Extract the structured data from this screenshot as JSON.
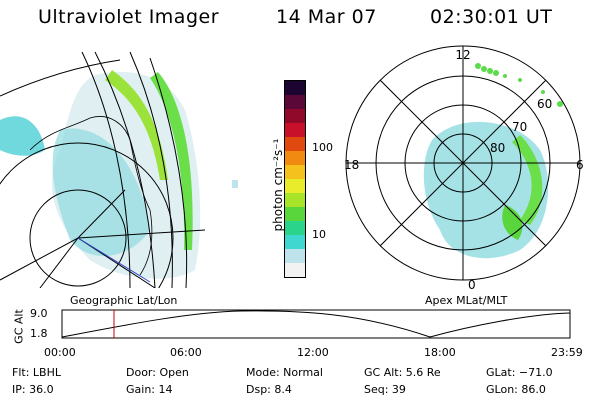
{
  "header": {
    "title": "Ultraviolet Imager",
    "date": "14 Mar 07",
    "time": "02:30:01 UT"
  },
  "colorbar": {
    "unit_label": "photon cm⁻²s⁻¹",
    "ticks": [
      "100",
      "10"
    ],
    "colors": [
      "#f2f2f2",
      "#bfe3ea",
      "#3fd7d0",
      "#2ad48a",
      "#58d63c",
      "#a8e42a",
      "#e8ec2a",
      "#f5c21d",
      "#f08a10",
      "#e04a10",
      "#c8102a",
      "#90082a",
      "#5a0838",
      "#1c0430"
    ]
  },
  "left_map": {
    "label": "Geographic Lat/Lon"
  },
  "polar_map": {
    "label": "Apex MLat/MLT",
    "mlt_labels": {
      "top": "12",
      "left": "18",
      "right": "6",
      "bottom": "0"
    },
    "lat_labels": [
      "60",
      "70",
      "80"
    ]
  },
  "altitude_plot": {
    "ylabel": "GC Alt",
    "y_ticks": [
      "9.0",
      "1.8"
    ],
    "x_ticks": [
      "00:00",
      "06:00",
      "12:00",
      "18:00",
      "23:59"
    ]
  },
  "status": {
    "flt": "Flt: LBHL",
    "ip": "IP: 36.0",
    "door": "Door: Open",
    "gain": "Gain: 14",
    "mode": "Mode: Normal",
    "dsp": "Dsp:    8.4",
    "gcalt": "GC Alt: 5.6 Re",
    "seq": "Seq: 39",
    "glat": "GLat: −71.0",
    "glon": "GLon:  86.0"
  }
}
